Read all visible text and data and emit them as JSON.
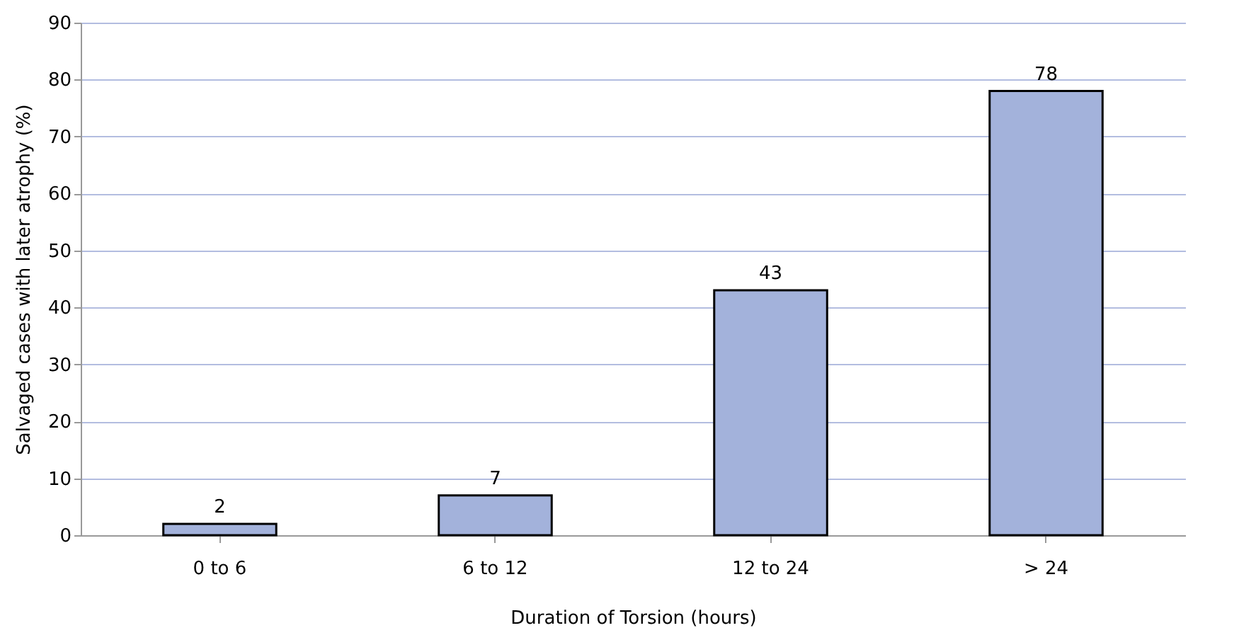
{
  "chart_data": {
    "type": "bar",
    "xlabel": "Duration of Torsion (hours)",
    "ylabel": "Salvaged cases with later atrophy (%)",
    "categories": [
      "0 to 6",
      "6 to 12",
      "12 to 24",
      "> 24"
    ],
    "values": [
      2,
      7,
      43,
      78
    ],
    "color": "#a3b2db",
    "ylim": [
      0,
      90
    ],
    "yticks": [
      0,
      10,
      20,
      30,
      40,
      50,
      60,
      70,
      80,
      90
    ],
    "grid": "y",
    "data_labels": true
  }
}
